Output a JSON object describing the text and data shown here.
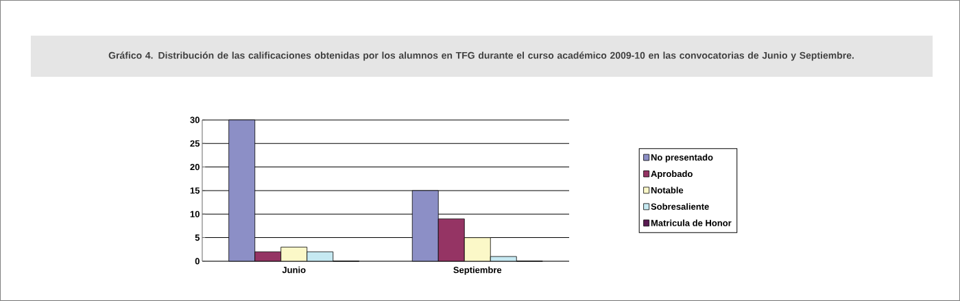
{
  "chart_data": {
    "type": "bar",
    "title": "Gráfico 4. Distribución de las calificaciones obtenidas por los alumnos en TFG durante el curso académico 2009-10 en las convocatorias de Junio y Septiembre.",
    "categories": [
      "Junio",
      "Septiembre"
    ],
    "series": [
      {
        "name": "No presentado",
        "color": "#8c8fc6",
        "values": [
          30,
          15
        ]
      },
      {
        "name": "Aprobado",
        "color": "#953464",
        "values": [
          2,
          9
        ]
      },
      {
        "name": "Notable",
        "color": "#fbf8c8",
        "values": [
          3,
          5
        ]
      },
      {
        "name": "Sobresaliente",
        "color": "#c6e9f2",
        "values": [
          2,
          1
        ]
      },
      {
        "name": "Matricula de Honor",
        "color": "#5a1a52",
        "values": [
          0,
          0
        ]
      }
    ],
    "ylim": [
      0,
      30
    ],
    "yticks": [
      0,
      5,
      10,
      15,
      20,
      25,
      30
    ],
    "grid": "y",
    "legend": "right"
  }
}
